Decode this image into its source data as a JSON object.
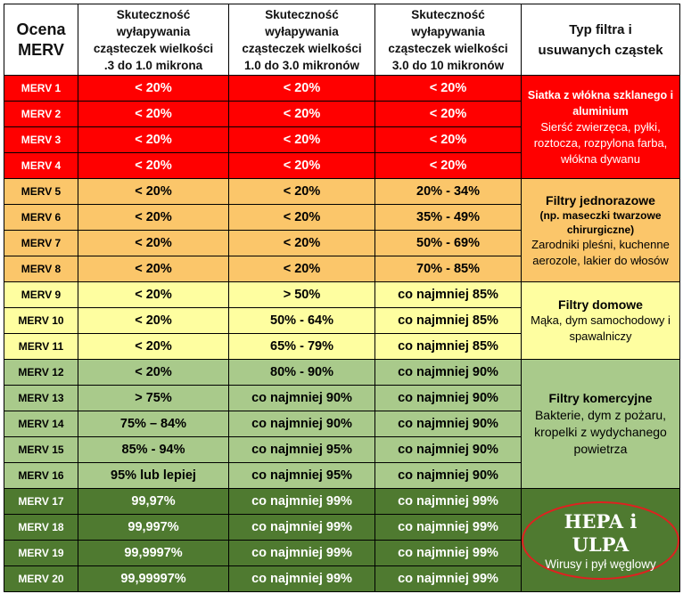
{
  "headers": [
    "Ocena\nMERV",
    "Skuteczność\nwyłapywania\ncząsteczek wielkości\n.3 do 1.0 mikrona",
    "Skuteczność\nwyłapywania\ncząsteczek wielkości\n1.0 do 3.0 mikronów",
    "Skuteczność\nwyłapywania\ncząsteczek wielkości\n3.0 do 10 mikronów",
    "Typ filtra i\nusuwanych cząstek"
  ],
  "colors": {
    "red": "#ff0000",
    "orange": "#fbc66a",
    "yellow": "#fefea0",
    "light_green": "#a9ca8b",
    "dark_green": "#4f7a30"
  },
  "rows": [
    {
      "rating": "MERV 1",
      "c1": "< 20%",
      "c2": "< 20%",
      "c3": "< 20%"
    },
    {
      "rating": "MERV 2",
      "c1": "< 20%",
      "c2": "< 20%",
      "c3": "< 20%"
    },
    {
      "rating": "MERV 3",
      "c1": "< 20%",
      "c2": "< 20%",
      "c3": "< 20%"
    },
    {
      "rating": "MERV 4",
      "c1": "< 20%",
      "c2": "< 20%",
      "c3": "< 20%"
    },
    {
      "rating": "MERV 5",
      "c1": "< 20%",
      "c2": "< 20%",
      "c3": "20% - 34%"
    },
    {
      "rating": "MERV 6",
      "c1": "< 20%",
      "c2": "< 20%",
      "c3": "35% - 49%"
    },
    {
      "rating": "MERV 7",
      "c1": "< 20%",
      "c2": "< 20%",
      "c3": "50% - 69%"
    },
    {
      "rating": "MERV 8",
      "c1": "< 20%",
      "c2": "< 20%",
      "c3": "70% - 85%"
    },
    {
      "rating": "MERV 9",
      "c1": "< 20%",
      "c2": "> 50%",
      "c3": "co najmniej 85%"
    },
    {
      "rating": "MERV 10",
      "c1": "< 20%",
      "c2": "50% - 64%",
      "c3": "co najmniej 85%"
    },
    {
      "rating": "MERV 11",
      "c1": "< 20%",
      "c2": "65% - 79%",
      "c3": "co najmniej 85%"
    },
    {
      "rating": "MERV 12",
      "c1": "< 20%",
      "c2": "80% - 90%",
      "c3": "co najmniej 90%"
    },
    {
      "rating": "MERV 13",
      "c1": "> 75%",
      "c2": "co najmniej 90%",
      "c3": "co najmniej 90%"
    },
    {
      "rating": "MERV 14",
      "c1": "75% – 84%",
      "c2": "co najmniej 90%",
      "c3": "co najmniej 90%"
    },
    {
      "rating": "MERV 15",
      "c1": "85% - 94%",
      "c2": "co najmniej 95%",
      "c3": "co najmniej 90%"
    },
    {
      "rating": "MERV 16",
      "c1": "95% lub lepiej",
      "c2": "co najmniej 95%",
      "c3": "co najmniej 90%"
    },
    {
      "rating": "MERV 17",
      "c1": "99,97%",
      "c2": "co najmniej 99%",
      "c3": "co najmniej 99%"
    },
    {
      "rating": "MERV 18",
      "c1": "99,997%",
      "c2": "co najmniej 99%",
      "c3": "co najmniej 99%"
    },
    {
      "rating": "MERV 19",
      "c1": "99,9997%",
      "c2": "co najmniej 99%",
      "c3": "co najmniej 99%"
    },
    {
      "rating": "MERV 20",
      "c1": "99,99997%",
      "c2": "co najmniej 99%",
      "c3": "co najmniej 99%"
    }
  ],
  "descriptions": {
    "group1": {
      "title": "Siatka z włókna szklanego i aluminium",
      "text": "Sierść zwierzęca, pyłki, roztocza, rozpylona farba, włókna dywanu"
    },
    "group2": {
      "title": "Filtry jednorazowe",
      "subtitle": "(np. maseczki twarzowe chirurgiczne)",
      "text": "Zarodniki pleśni, kuchenne aerozole, lakier do włosów"
    },
    "group3": {
      "title": "Filtry domowe",
      "text": "Mąka, dym samochodowy i spawalniczy"
    },
    "group4": {
      "title": "Filtry komercyjne",
      "text": "Bakterie, dym z pożaru, kropelki z wydychanego powietrza"
    },
    "group5": {
      "title": "HEPA i ULPA",
      "text": "Wirusy i pył węglowy"
    }
  }
}
